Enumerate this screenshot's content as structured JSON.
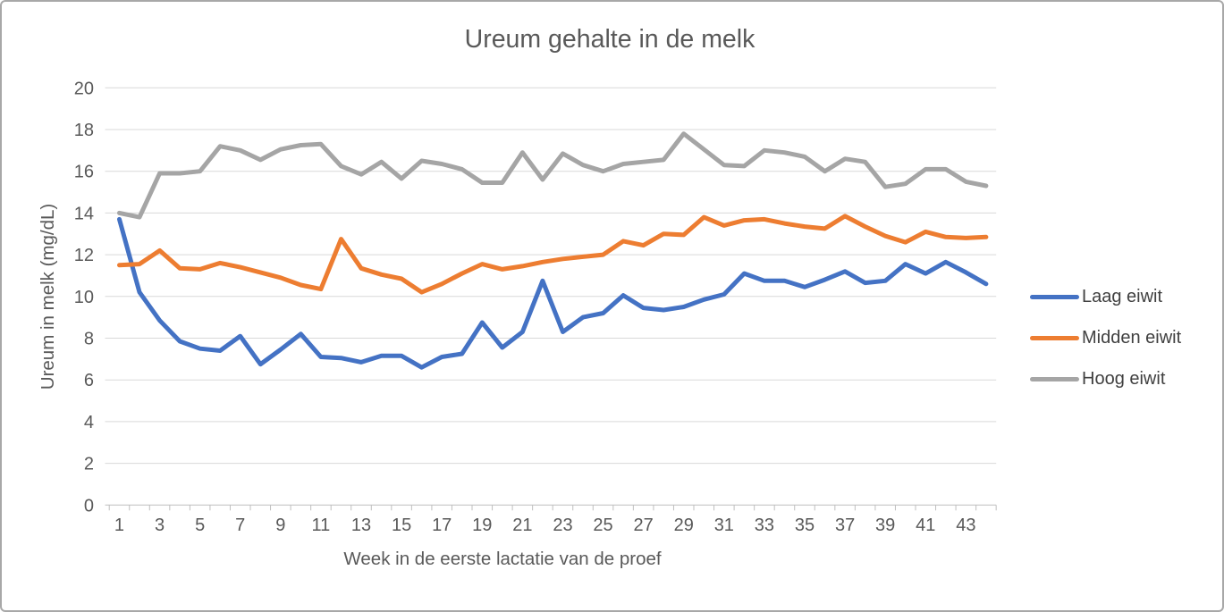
{
  "chart_data": {
    "type": "line",
    "title": "Ureum gehalte in de melk",
    "xlabel": "Week in de eerste lactatie van de proef",
    "ylabel": "Ureum in melk (mg/dL)",
    "ylim": [
      0,
      20
    ],
    "y_tick_step": 2,
    "grid": true,
    "legend_position": "right",
    "x": [
      1,
      2,
      3,
      4,
      5,
      6,
      7,
      8,
      9,
      10,
      11,
      12,
      13,
      14,
      15,
      16,
      17,
      18,
      19,
      20,
      21,
      22,
      23,
      24,
      25,
      26,
      27,
      28,
      29,
      30,
      31,
      32,
      33,
      34,
      35,
      36,
      37,
      38,
      39,
      40,
      41,
      42,
      43,
      44
    ],
    "series": [
      {
        "name": "Laag eiwit",
        "color": "#4472C4",
        "values": [
          13.7,
          10.2,
          8.85,
          7.85,
          7.5,
          7.4,
          8.1,
          6.75,
          7.45,
          8.2,
          7.1,
          7.05,
          6.85,
          7.15,
          7.15,
          6.6,
          7.1,
          7.25,
          8.75,
          7.55,
          8.3,
          10.75,
          8.3,
          9.0,
          9.2,
          10.05,
          9.45,
          9.35,
          9.5,
          9.85,
          10.1,
          11.1,
          10.75,
          10.75,
          10.45,
          10.8,
          11.2,
          10.65,
          10.75,
          11.55,
          11.1,
          11.65,
          11.15,
          10.6
        ]
      },
      {
        "name": "Midden eiwit",
        "color": "#ED7D31",
        "values": [
          11.5,
          11.55,
          12.2,
          11.35,
          11.3,
          11.6,
          11.4,
          11.15,
          10.9,
          10.55,
          10.35,
          12.75,
          11.35,
          11.05,
          10.85,
          10.2,
          10.6,
          11.1,
          11.55,
          11.3,
          11.45,
          11.65,
          11.8,
          11.9,
          12.0,
          12.65,
          12.45,
          13.0,
          12.95,
          13.8,
          13.4,
          13.65,
          13.7,
          13.5,
          13.35,
          13.25,
          13.85,
          13.35,
          12.9,
          12.6,
          13.1,
          12.85,
          12.8,
          12.85
        ]
      },
      {
        "name": "Hoog eiwit",
        "color": "#A5A5A5",
        "values": [
          14.0,
          13.8,
          15.9,
          15.9,
          16.0,
          17.2,
          17.0,
          16.55,
          17.05,
          17.25,
          17.3,
          16.25,
          15.85,
          16.45,
          15.65,
          16.5,
          16.35,
          16.1,
          15.45,
          15.45,
          16.9,
          15.6,
          16.85,
          16.3,
          16.0,
          16.35,
          16.45,
          16.55,
          17.8,
          17.05,
          16.3,
          16.25,
          17.0,
          16.9,
          16.7,
          16.0,
          16.6,
          16.45,
          15.25,
          15.4,
          16.1,
          16.1,
          15.5,
          15.3
        ]
      }
    ]
  },
  "y_axis": {
    "title": "Ureum in melk (mg/dL)",
    "ticks": [
      "0",
      "2",
      "4",
      "6",
      "8",
      "10",
      "12",
      "14",
      "16",
      "18",
      "20"
    ]
  },
  "x_axis": {
    "title": "Week in de eerste lactatie van de proef",
    "tick_labels": [
      "1",
      "3",
      "5",
      "7",
      "9",
      "11",
      "13",
      "15",
      "17",
      "19",
      "21",
      "23",
      "25",
      "27",
      "29",
      "31",
      "33",
      "35",
      "37",
      "39",
      "41",
      "43"
    ]
  },
  "legend": {
    "items": [
      "Laag eiwit",
      "Midden eiwit",
      "Hoog eiwit"
    ]
  }
}
